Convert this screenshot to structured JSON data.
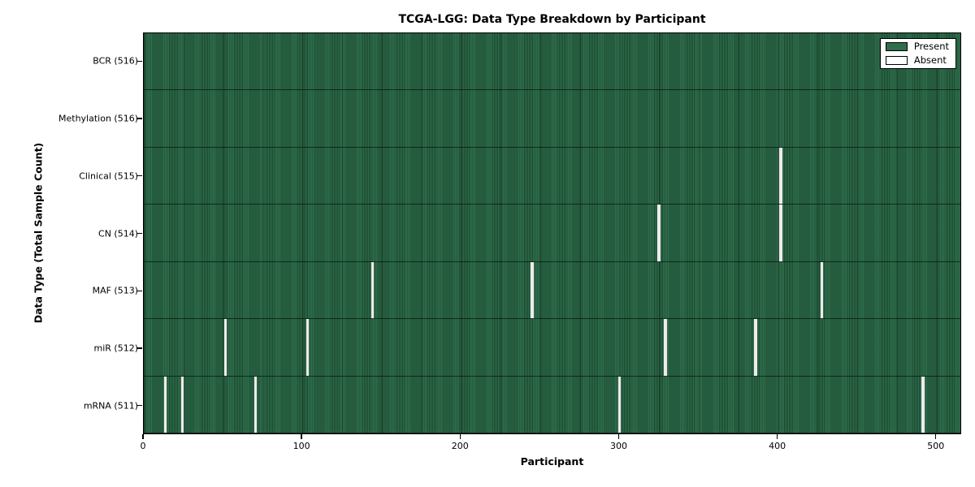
{
  "chart_data": {
    "type": "heatmap",
    "title": "TCGA-LGG: Data Type Breakdown by Participant",
    "xlabel": "Participant",
    "ylabel": "Data Type (Total Sample Count)",
    "x_ticks": [
      0,
      100,
      200,
      300,
      400,
      500
    ],
    "xlim": [
      0,
      516
    ],
    "n_participants": 516,
    "grid": false,
    "legend_position": "upper right",
    "colors": {
      "present": "#2f6e4c",
      "present_edge": "#173d27",
      "absent": "#ececec",
      "border": "#000000",
      "background": "#ffffff"
    },
    "legend": [
      {
        "label": "Present",
        "color": "#2f6e4c"
      },
      {
        "label": "Absent",
        "color": "#ffffff"
      }
    ],
    "rows": [
      {
        "label": "BCR (516)",
        "data_type": "BCR",
        "present_count": 516,
        "absent_participants": []
      },
      {
        "label": "Methylation (516)",
        "data_type": "Methylation",
        "present_count": 516,
        "absent_participants": []
      },
      {
        "label": "Clinical (515)",
        "data_type": "Clinical",
        "present_count": 515,
        "absent_participants": [
          402
        ]
      },
      {
        "label": "CN (514)",
        "data_type": "CN",
        "present_count": 514,
        "absent_participants": [
          325,
          402
        ]
      },
      {
        "label": "MAF (513)",
        "data_type": "MAF",
        "present_count": 513,
        "absent_participants": [
          144,
          245,
          428
        ]
      },
      {
        "label": "miR (512)",
        "data_type": "miR",
        "present_count": 512,
        "absent_participants": [
          51,
          103,
          329,
          386
        ]
      },
      {
        "label": "mRNA (511)",
        "data_type": "mRNA",
        "present_count": 511,
        "absent_participants": [
          13,
          24,
          70,
          300,
          492
        ]
      }
    ]
  }
}
